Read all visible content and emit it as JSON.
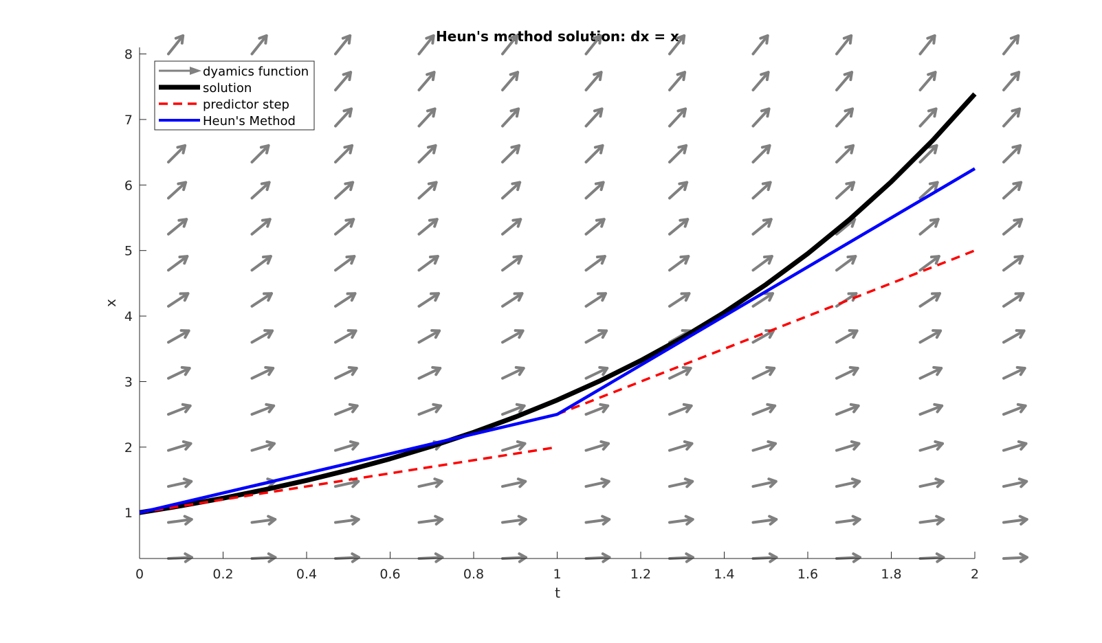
{
  "chart_data": {
    "type": "line",
    "title": "Heun's method solution:  dx = x",
    "xlabel": "t",
    "ylabel": "x",
    "xlim": [
      0,
      2
    ],
    "ylim": [
      0.3,
      8.1
    ],
    "x_ticks": [
      "0",
      "0.2",
      "0.4",
      "0.6",
      "0.8",
      "1",
      "1.2",
      "1.4",
      "1.6",
      "1.8",
      "2"
    ],
    "y_ticks": [
      "1",
      "2",
      "3",
      "4",
      "5",
      "6",
      "7",
      "8"
    ],
    "legend_position": "top-left",
    "legend": [
      {
        "label": "dyamics function",
        "style": "arrow",
        "color": "#808080"
      },
      {
        "label": "solution",
        "style": "solid",
        "color": "#000000"
      },
      {
        "label": "predictor step",
        "style": "dashed",
        "color": "#ff0000"
      },
      {
        "label": "Heun's Method",
        "style": "solid",
        "color": "#0000ff"
      }
    ],
    "quiver": {
      "name": "dyamics function",
      "color": "#808080",
      "t": [
        0,
        0.2,
        0.4,
        0.6,
        0.8,
        1.0,
        1.2,
        1.4,
        1.6,
        1.8,
        2.0
      ],
      "x": [
        0.3,
        0.85,
        1.4,
        1.95,
        2.5,
        3.05,
        3.6,
        4.15,
        4.7,
        5.25,
        5.8,
        6.35,
        6.9,
        7.45,
        8.0
      ]
    },
    "series": [
      {
        "name": "solution",
        "color": "#000000",
        "x": [
          0,
          0.1,
          0.2,
          0.3,
          0.4,
          0.5,
          0.6,
          0.7,
          0.8,
          0.9,
          1.0,
          1.1,
          1.2,
          1.3,
          1.4,
          1.5,
          1.6,
          1.7,
          1.8,
          1.9,
          2.0
        ],
        "y": [
          1.0,
          1.105,
          1.221,
          1.35,
          1.492,
          1.649,
          1.822,
          2.014,
          2.226,
          2.46,
          2.718,
          3.004,
          3.32,
          3.669,
          4.055,
          4.482,
          4.953,
          5.474,
          6.05,
          6.686,
          7.389
        ]
      },
      {
        "name": "predictor step",
        "color": "#ff0000",
        "segments": [
          {
            "x": [
              0,
              1
            ],
            "y": [
              1.0,
              2.0
            ]
          },
          {
            "x": [
              1,
              2
            ],
            "y": [
              2.5,
              5.0
            ]
          }
        ]
      },
      {
        "name": "Heun's Method",
        "color": "#0000ff",
        "x": [
          0,
          1,
          2
        ],
        "y": [
          1.0,
          2.5,
          6.25
        ]
      }
    ]
  }
}
